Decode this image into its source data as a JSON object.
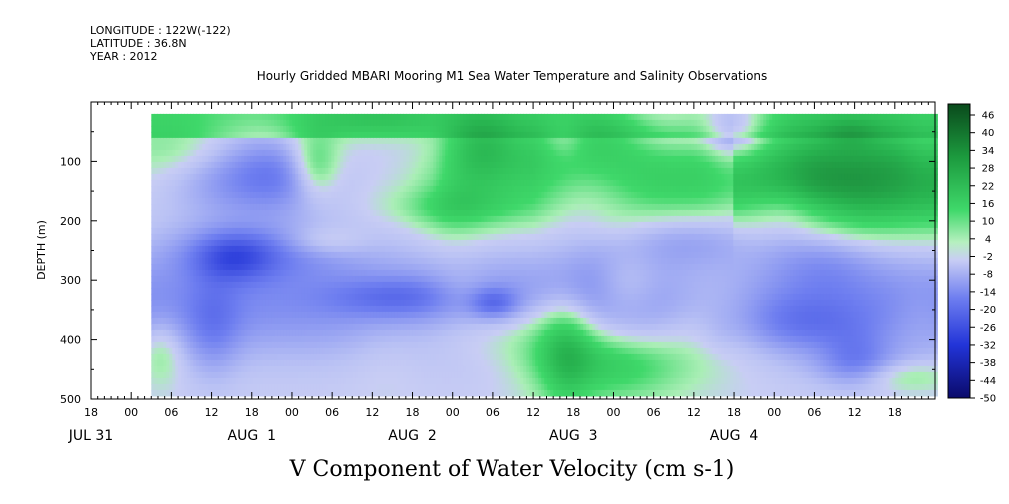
{
  "header": {
    "longitude": "LONGITUDE : 122W(-122)",
    "latitude": "LATITUDE : 36.8N",
    "year": "YEAR : 2012"
  },
  "chart_data": {
    "type": "heatmap",
    "title": "Hourly Gridded MBARI Mooring M1 Sea Water Temperature and Salinity Observations",
    "variable_label": "V Component of Water Velocity (cm s-1)",
    "ylabel": "DEPTH (m)",
    "y_range": [
      500,
      0
    ],
    "y_ticks": [
      100,
      200,
      300,
      400,
      500
    ],
    "x_range_hours": [
      -6,
      120
    ],
    "x_start": "2012-07-31T18:00",
    "x_hour_labels": [
      "18",
      "00",
      "06",
      "12",
      "18",
      "00",
      "06",
      "12",
      "18",
      "00",
      "06",
      "12",
      "18",
      "00",
      "06",
      "12",
      "18",
      "00",
      "06",
      "12",
      "18"
    ],
    "x_date_labels": [
      "JUL 31",
      "AUG  1",
      "AUG  2",
      "AUG  3",
      "AUG  4"
    ],
    "data_extent": {
      "time_start_hours": 3,
      "time_end_hours": 120,
      "depth_top": 20,
      "depth_bottom": 490
    },
    "colorbar": {
      "levels": [
        "46",
        "40",
        "34",
        "28",
        "22",
        "16",
        "10",
        "4",
        "-2",
        "-8",
        "-14",
        "-20",
        "-26",
        "-32",
        "-38",
        "-44",
        "-50"
      ]
    },
    "colors": {
      "strong_positive": "#0a5a22",
      "positive": "#3fd86a",
      "weak_positive": "#a6eeb2",
      "weak_negative": "#b8c0f2",
      "negative": "#6e7ef0",
      "strong_negative": "#0c0c6e"
    },
    "grid": "off"
  }
}
